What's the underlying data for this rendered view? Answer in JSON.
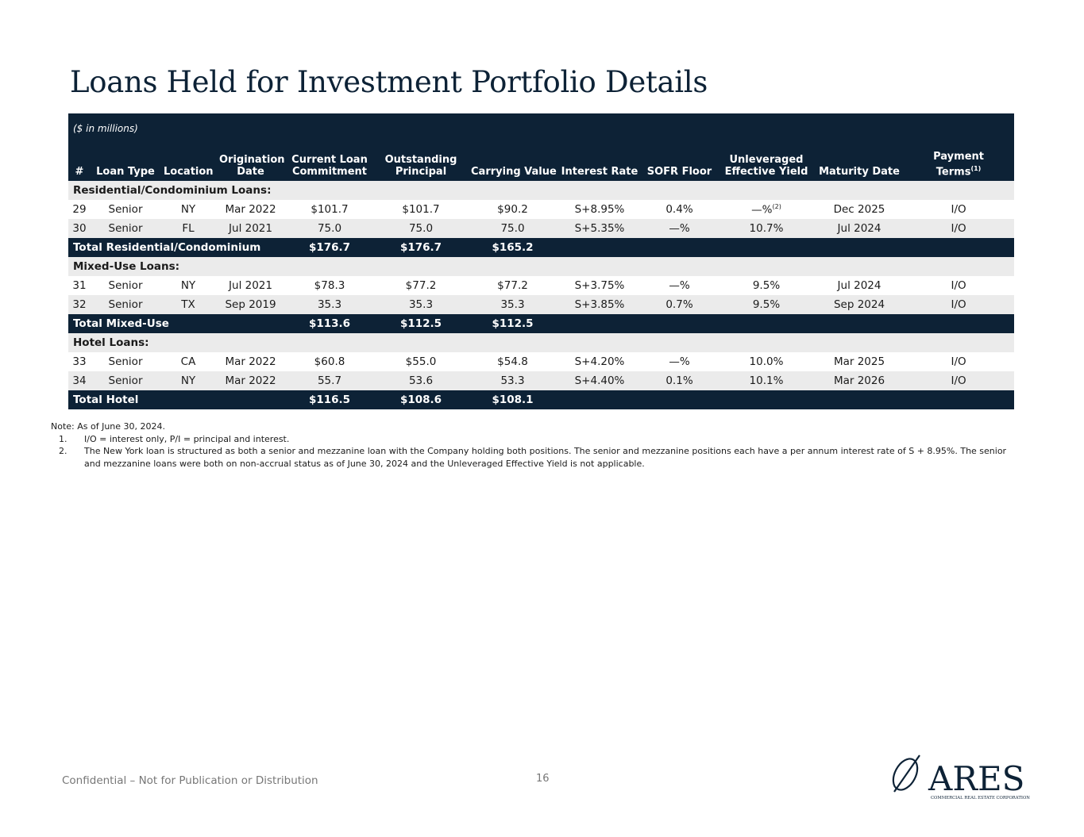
{
  "title": "Loans Held for Investment Portfolio Details",
  "table": {
    "units_note": "($ in millions)",
    "headers": {
      "num": "#",
      "loan_type": "Loan Type",
      "location": "Location",
      "origination_1": "Origination",
      "origination_2": "Date",
      "commitment_1": "Current Loan",
      "commitment_2": "Commitment",
      "principal_1": "Outstanding",
      "principal_2": "Principal",
      "carrying": "Carrying Value",
      "rate": "Interest Rate",
      "sofr": "SOFR Floor",
      "yield_1": "Unleveraged",
      "yield_2": "Effective Yield",
      "maturity": "Maturity Date",
      "terms_1": "Payment",
      "terms_2": "Terms",
      "terms_sup": "(1)"
    },
    "sections": [
      {
        "label": "Residential/Condominium Loans:",
        "rows": [
          {
            "num": "29",
            "type": "Senior",
            "loc": "NY",
            "orig": "Mar 2022",
            "commit": "$101.7",
            "principal": "$101.7",
            "carrying": "$90.2",
            "rate": "S+8.95%",
            "sofr": "0.4%",
            "yield": "—%",
            "yield_sup": "(2)",
            "maturity": "Dec 2025",
            "terms": "I/O"
          },
          {
            "num": "30",
            "type": "Senior",
            "loc": "FL",
            "orig": "Jul 2021",
            "commit": "75.0",
            "principal": "75.0",
            "carrying": "75.0",
            "rate": "S+5.35%",
            "sofr": "—%",
            "yield": "10.7%",
            "yield_sup": "",
            "maturity": "Jul 2024",
            "terms": "I/O"
          }
        ],
        "total": {
          "label": "Total Residential/Condominium",
          "commit": "$176.7",
          "principal": "$176.7",
          "carrying": "$165.2"
        }
      },
      {
        "label": "Mixed-Use Loans:",
        "rows": [
          {
            "num": "31",
            "type": "Senior",
            "loc": "NY",
            "orig": "Jul 2021",
            "commit": "$78.3",
            "principal": "$77.2",
            "carrying": "$77.2",
            "rate": "S+3.75%",
            "sofr": "—%",
            "yield": "9.5%",
            "yield_sup": "",
            "maturity": "Jul 2024",
            "terms": "I/O"
          },
          {
            "num": "32",
            "type": "Senior",
            "loc": "TX",
            "orig": "Sep 2019",
            "commit": "35.3",
            "principal": "35.3",
            "carrying": "35.3",
            "rate": "S+3.85%",
            "sofr": "0.7%",
            "yield": "9.5%",
            "yield_sup": "",
            "maturity": "Sep 2024",
            "terms": "I/O"
          }
        ],
        "total": {
          "label": "Total Mixed-Use",
          "commit": "$113.6",
          "principal": "$112.5",
          "carrying": "$112.5"
        }
      },
      {
        "label": "Hotel Loans:",
        "rows": [
          {
            "num": "33",
            "type": "Senior",
            "loc": "CA",
            "orig": "Mar 2022",
            "commit": "$60.8",
            "principal": "$55.0",
            "carrying": "$54.8",
            "rate": "S+4.20%",
            "sofr": "—%",
            "yield": "10.0%",
            "yield_sup": "",
            "maturity": "Mar 2025",
            "terms": "I/O"
          },
          {
            "num": "34",
            "type": "Senior",
            "loc": "NY",
            "orig": "Mar 2022",
            "commit": "55.7",
            "principal": "53.6",
            "carrying": "53.3",
            "rate": "S+4.40%",
            "sofr": "0.1%",
            "yield": "10.1%",
            "yield_sup": "",
            "maturity": "Mar 2026",
            "terms": "I/O"
          }
        ],
        "total": {
          "label": "Total Hotel",
          "commit": "$116.5",
          "principal": "$108.6",
          "carrying": "$108.1"
        }
      }
    ]
  },
  "notes": {
    "intro": "Note: As of June 30, 2024.",
    "items": [
      {
        "num": "1.",
        "text": "I/O = interest only, P/I = principal and interest."
      },
      {
        "num": "2.",
        "text": "The New York loan is structured as both a senior and mezzanine loan with the Company holding both positions. The senior and mezzanine positions each have a per annum interest rate of S + 8.95%. The senior and mezzanine loans were both on non-accrual status as of June 30, 2024 and the Unleveraged Effective Yield is not applicable."
      }
    ]
  },
  "footer": {
    "confidential": "Confidential – Not for Publication or Distribution",
    "page_number": "16"
  },
  "logo": {
    "name": "ARES",
    "tagline": "COMMERCIAL REAL ESTATE CORPORATION"
  },
  "colors": {
    "navy": "#0d2236",
    "row_gray": "#ebebeb"
  }
}
